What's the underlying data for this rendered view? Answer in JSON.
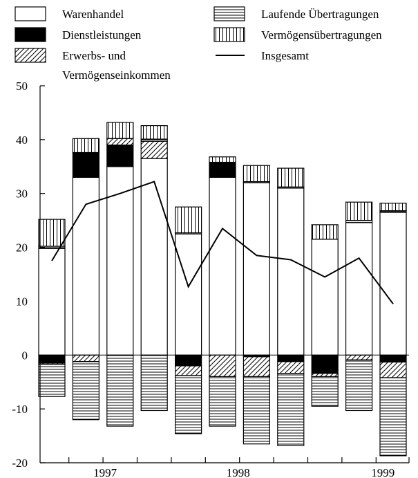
{
  "chart_data": {
    "type": "bar",
    "stacked": true,
    "title": "",
    "xlabel": "",
    "ylabel": "",
    "ylim": [
      -20,
      50
    ],
    "y_ticks": [
      -20,
      -10,
      0,
      10,
      20,
      30,
      40,
      50
    ],
    "y_tick_labels": [
      "-20",
      "-10",
      "0",
      "10",
      "20",
      "30",
      "40",
      "50"
    ],
    "x_year_labels": [
      "1997",
      "1998",
      "1999"
    ],
    "grid": false,
    "legend_position": "top",
    "legend": {
      "warenhandel": "Warenhandel",
      "dienstleistungen": "Dienstleistungen",
      "erwerbs_line1": "Erwerbs- und",
      "erwerbs_line2": "Vermögenseinkommen",
      "laufende": "Laufende Übertragungen",
      "vermoegens": "Vermögensübertragungen",
      "insgesamt": "Insgesamt"
    },
    "positive_series": [
      {
        "key": "warenhandel",
        "values": [
          19.8,
          33.0,
          35.0,
          36.5,
          22.5,
          33.0,
          32.0,
          31.0,
          21.5,
          24.6,
          26.5
        ]
      },
      {
        "key": "dienstleistungen",
        "values": [
          0,
          4.6,
          4.0,
          0,
          0,
          2.8,
          0,
          0,
          0,
          0,
          0
        ]
      },
      {
        "key": "erwerbs",
        "values": [
          0,
          0,
          1.2,
          3.2,
          0,
          0,
          0,
          0,
          0,
          0,
          0
        ]
      },
      {
        "key": "laufende",
        "values": [
          0.4,
          0,
          0,
          0.4,
          0.2,
          0,
          0.2,
          0.2,
          0,
          0.4,
          0.3
        ]
      },
      {
        "key": "vermoegens",
        "values": [
          5.0,
          2.6,
          3.0,
          2.5,
          4.8,
          1.0,
          3.0,
          3.5,
          2.7,
          3.4,
          1.4
        ]
      }
    ],
    "negative_series": [
      {
        "key": "warenhandel",
        "values": [
          0,
          0,
          0,
          0,
          0,
          0,
          0,
          0,
          0,
          0,
          0
        ]
      },
      {
        "key": "dienstleistungen",
        "values": [
          -1.5,
          0,
          0,
          0,
          -2.0,
          0,
          -0.3,
          -1.2,
          -3.4,
          0,
          -1.3
        ]
      },
      {
        "key": "erwerbs",
        "values": [
          -0.2,
          -1.2,
          0,
          0,
          -1.8,
          -4.0,
          -3.7,
          -2.2,
          -0.6,
          -0.9,
          -2.9
        ]
      },
      {
        "key": "laufende",
        "values": [
          -6.0,
          -10.8,
          -13.2,
          -10.3,
          -10.8,
          -9.2,
          -12.5,
          -13.4,
          -5.5,
          -9.4,
          -14.5
        ]
      },
      {
        "key": "vermoegens",
        "values": [
          0,
          0,
          0,
          0,
          0,
          0,
          0,
          0,
          0,
          0,
          0
        ]
      }
    ],
    "insgesamt_values": [
      17.5,
      28.0,
      30.0,
      32.2,
      12.7,
      23.5,
      18.5,
      17.7,
      14.5,
      18.0,
      9.5
    ],
    "colors": {
      "fill": "#ffffff",
      "solid": "#000000",
      "stroke": "#000000"
    }
  }
}
